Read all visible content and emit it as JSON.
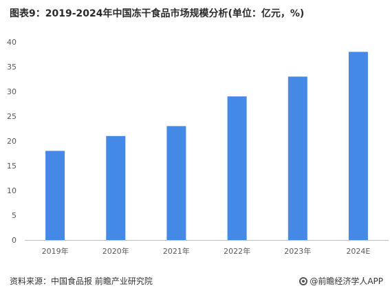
{
  "title": "图表9：2019-2024年中国冻干食品市场规模分析(单位：亿元，%)",
  "footer": {
    "source": "资料来源：中国食品报 前瞻产业研究院",
    "brand": "@前瞻经济学人APP"
  },
  "colors": {
    "bar": "#4589E6",
    "axis": "#BFBFBF",
    "text": "#595959"
  },
  "chart_data": {
    "type": "bar",
    "title": "图表9：2019-2024年中国冻干食品市场规模分析(单位：亿元，%)",
    "categories": [
      "2019年",
      "2020年",
      "2021年",
      "2022年",
      "2023年",
      "2024E"
    ],
    "values": [
      18,
      21,
      23,
      29,
      33,
      38
    ],
    "ylim": [
      0,
      40
    ],
    "yticks": [
      0,
      5,
      10,
      15,
      20,
      25,
      30,
      35,
      40
    ],
    "xlabel": "",
    "ylabel": "",
    "grid": false,
    "legend": "none"
  }
}
